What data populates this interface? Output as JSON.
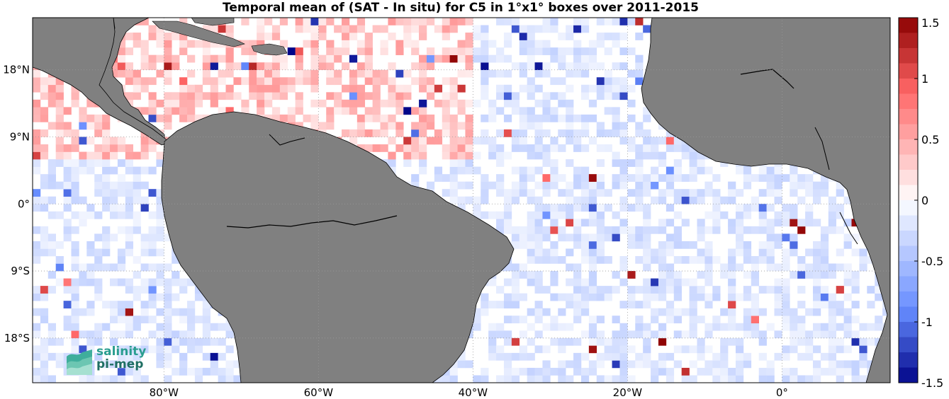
{
  "title": "Temporal mean of (SAT - In situ) for C5 in 1°x1° boxes over 2011-2015",
  "lon_ticks": [
    "80°W",
    "60°W",
    "40°W",
    "20°W",
    "0°"
  ],
  "lat_ticks": [
    "18°N",
    "9°N",
    "0°",
    "9°S",
    "18°S"
  ],
  "colorbar": {
    "ticks": [
      "1.5",
      "1",
      "0.5",
      "0",
      "-0.5",
      "-1",
      "-1.5"
    ],
    "min": -1.5,
    "max": 1.5
  },
  "logo": {
    "line1": "salinity",
    "line2": "pi-mep"
  },
  "colors": {
    "land": "#808080",
    "ocean": "#ffffff",
    "positive": "#e8000b",
    "negative": "#1f6fe0",
    "coast": "#000000"
  },
  "chart_data": {
    "type": "heatmap",
    "title": "Temporal mean of (SAT - In situ) for C5 in 1°x1° boxes over 2011-2015",
    "xlabel": "",
    "ylabel": "",
    "xlim": [
      -97,
      14
    ],
    "ylim": [
      -24,
      25
    ],
    "x_ticks": [
      -80,
      -60,
      -40,
      -20,
      0
    ],
    "y_ticks": [
      18,
      9,
      0,
      -9,
      -18
    ],
    "clim": [
      -1.5,
      1.5
    ],
    "colormap": "blue-white-red diverging",
    "grid": true,
    "cell_size_deg": 1
  }
}
